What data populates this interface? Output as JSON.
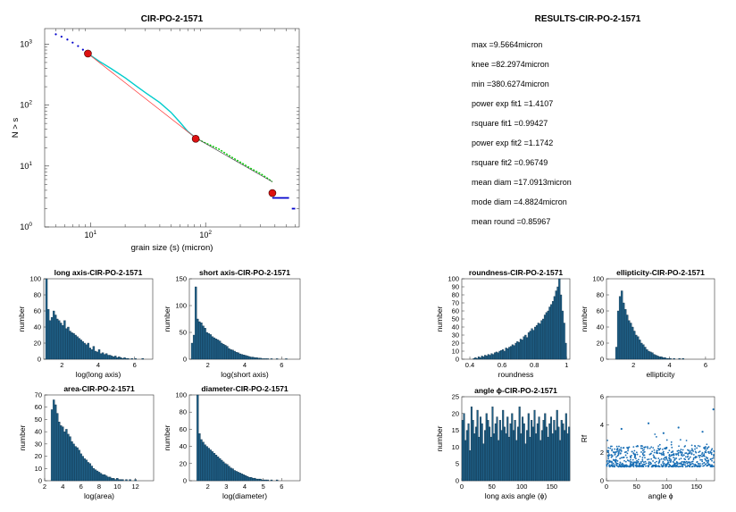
{
  "results": {
    "title": "RESULTS-CIR-PO-2-1571",
    "lines": [
      "max =9.5664micron",
      "knee =82.2974micron",
      "min =380.6274micron",
      "power exp fit1 =1.4107",
      "rsquare fit1 =0.99427",
      "power exp fit2 =1.1742",
      "rsquare fit2 =0.96749",
      "mean diam =17.0913micron",
      "mode diam =4.8824micron",
      "mean round =0.85967"
    ]
  },
  "chart_data": [
    {
      "id": "main",
      "type": "line",
      "title": "CIR-PO-2-1571",
      "xlabel": "grain size (s) (micron)",
      "ylabel": "N > s",
      "xscale": "log",
      "yscale": "log",
      "xlim": [
        4,
        650
      ],
      "ylim": [
        1,
        1800
      ],
      "xticks": [
        10,
        100
      ],
      "xticklabels": [
        "10^1",
        "10^2"
      ],
      "yticks": [
        1,
        10,
        100,
        1000
      ],
      "yticklabels": [
        "10^0",
        "10^1",
        "10^2",
        "10^3"
      ],
      "colors": {
        "data": "#0000cc",
        "fit1": "#00cccc",
        "fit2": "#00cc00",
        "fitline": "#ff3333",
        "marker": "#dd1111"
      },
      "series": [
        {
          "role": "data",
          "x": [
            5,
            5.6,
            6.3,
            7,
            7.8,
            8.6,
            9.5
          ],
          "y": [
            1450,
            1330,
            1190,
            1060,
            930,
            810,
            700
          ]
        },
        {
          "role": "fit1",
          "x": [
            9.5,
            12,
            15,
            20,
            25,
            30,
            40,
            50,
            60,
            70,
            82
          ],
          "y": [
            700,
            520,
            400,
            280,
            205,
            160,
            110,
            76,
            52,
            37,
            29
          ]
        },
        {
          "role": "fit2",
          "x": [
            82,
            95,
            110,
            130,
            150,
            180,
            210,
            250,
            300,
            350,
            380
          ],
          "y": [
            29,
            25,
            22,
            19,
            16,
            13,
            11,
            9,
            7.5,
            6.2,
            5.5
          ]
        },
        {
          "role": "fitline",
          "x": [
            9.5,
            82
          ],
          "y": [
            700,
            29
          ]
        },
        {
          "role": "fitline2",
          "x": [
            82,
            380
          ],
          "y": [
            29,
            5.5
          ]
        },
        {
          "role": "tail",
          "x": [
            380,
            530
          ],
          "y": [
            3,
            3
          ]
        },
        {
          "role": "tail2",
          "x": [
            560,
            600
          ],
          "y": [
            2,
            2
          ]
        },
        {
          "role": "knees",
          "x": [
            9.5,
            82,
            380
          ],
          "y": [
            700,
            28,
            3.6
          ]
        }
      ]
    },
    {
      "id": "h1",
      "type": "bar",
      "title": "long axis-CIR-PO-2-1571",
      "xlabel": "log(long axis)",
      "ylabel": "number",
      "xlim": [
        1,
        7
      ],
      "ylim": [
        0,
        100
      ],
      "xticks": [
        2,
        4,
        6
      ],
      "yticks": [
        0,
        20,
        40,
        60,
        80,
        100
      ],
      "bin_start": 1.1,
      "bin_width": 0.1,
      "values": [
        105,
        62,
        48,
        52,
        60,
        55,
        50,
        48,
        45,
        42,
        48,
        38,
        40,
        35,
        33,
        32,
        30,
        28,
        26,
        24,
        22,
        20,
        18,
        20,
        14,
        12,
        16,
        10,
        9,
        12,
        7,
        8,
        6,
        7,
        5,
        5,
        4,
        3,
        4,
        2,
        3,
        2,
        1,
        2,
        1,
        1,
        0,
        1,
        0,
        1,
        0,
        0,
        0,
        1,
        0,
        0,
        0
      ]
    },
    {
      "id": "h2",
      "type": "bar",
      "title": "short axis-CIR-PO-2-1571",
      "xlabel": "log(short axis)",
      "ylabel": "number",
      "xlim": [
        1,
        7
      ],
      "ylim": [
        0,
        150
      ],
      "xticks": [
        2,
        4,
        6
      ],
      "yticks": [
        0,
        50,
        100,
        150
      ],
      "bin_start": 1.1,
      "bin_width": 0.1,
      "values": [
        30,
        45,
        135,
        75,
        70,
        68,
        62,
        58,
        50,
        48,
        46,
        42,
        40,
        38,
        36,
        34,
        30,
        28,
        26,
        24,
        20,
        18,
        17,
        15,
        13,
        12,
        10,
        9,
        8,
        7,
        6,
        5,
        4,
        4,
        3,
        3,
        2,
        2,
        1,
        1,
        1,
        1,
        0,
        1,
        0,
        0,
        1,
        0,
        0,
        0,
        0,
        1
      ]
    },
    {
      "id": "h3",
      "type": "bar",
      "title": "area-CIR-PO-2-1571",
      "xlabel": "log(area)",
      "ylabel": "number",
      "xlim": [
        2,
        14
      ],
      "ylim": [
        0,
        70
      ],
      "xticks": [
        2,
        4,
        6,
        8,
        10,
        12
      ],
      "yticks": [
        0,
        10,
        20,
        30,
        40,
        50,
        60,
        70
      ],
      "bin_start": 2.7,
      "bin_width": 0.2,
      "values": [
        58,
        66,
        62,
        55,
        48,
        45,
        44,
        40,
        42,
        38,
        36,
        32,
        30,
        28,
        27,
        25,
        22,
        20,
        18,
        17,
        15,
        14,
        12,
        10,
        9,
        8,
        7,
        6,
        5,
        5,
        4,
        3,
        3,
        2,
        2,
        1,
        2,
        1,
        1,
        1,
        0,
        1,
        0,
        1,
        0,
        0,
        1
      ]
    },
    {
      "id": "h4",
      "type": "bar",
      "title": "diameter-CIR-PO-2-1571",
      "xlabel": "log(diameter)",
      "ylabel": "number",
      "xlim": [
        1,
        7
      ],
      "ylim": [
        0,
        100
      ],
      "xticks": [
        2,
        3,
        4,
        5,
        6
      ],
      "yticks": [
        0,
        20,
        40,
        60,
        80,
        100
      ],
      "bin_start": 1.4,
      "bin_width": 0.1,
      "values": [
        100,
        55,
        48,
        45,
        42,
        40,
        38,
        36,
        34,
        32,
        30,
        28,
        26,
        24,
        22,
        20,
        19,
        17,
        15,
        14,
        12,
        11,
        10,
        9,
        8,
        7,
        6,
        5,
        4,
        4,
        3,
        3,
        2,
        2,
        2,
        1,
        1,
        1,
        1,
        0,
        1,
        0,
        0,
        1
      ]
    },
    {
      "id": "h5",
      "type": "bar",
      "title": "roundness-CIR-PO-2-1571",
      "xlabel": "roundness",
      "ylabel": "number",
      "xlim": [
        0.35,
        1.02
      ],
      "ylim": [
        0,
        100
      ],
      "xticks": [
        0.4,
        0.6,
        0.8,
        1
      ],
      "xticklabels": [
        "0.4",
        "0.6",
        "0.8",
        "1"
      ],
      "yticks": [
        0,
        10,
        20,
        30,
        40,
        50,
        60,
        70,
        80,
        90,
        100
      ],
      "bin_start": 0.42,
      "bin_width": 0.01,
      "values": [
        1,
        2,
        1,
        3,
        2,
        4,
        3,
        5,
        4,
        6,
        5,
        7,
        6,
        8,
        9,
        8,
        10,
        11,
        12,
        10,
        14,
        13,
        15,
        16,
        18,
        17,
        20,
        22,
        21,
        25,
        24,
        28,
        30,
        27,
        33,
        35,
        38,
        36,
        40,
        42,
        45,
        44,
        48,
        50,
        55,
        58,
        60,
        65,
        68,
        72,
        78,
        85,
        90,
        100,
        80,
        60,
        45,
        20
      ]
    },
    {
      "id": "h6",
      "type": "bar",
      "title": "ellipticity-CIR-PO-2-1571",
      "xlabel": "ellipticity",
      "ylabel": "number",
      "xlim": [
        0.5,
        6.5
      ],
      "ylim": [
        0,
        100
      ],
      "xticks": [
        2,
        4,
        6
      ],
      "yticks": [
        0,
        20,
        40,
        60,
        80,
        100
      ],
      "bin_start": 1.0,
      "bin_width": 0.1,
      "values": [
        15,
        60,
        78,
        85,
        70,
        62,
        55,
        48,
        45,
        40,
        35,
        30,
        28,
        24,
        20,
        18,
        15,
        12,
        10,
        9,
        8,
        6,
        5,
        4,
        3,
        3,
        2,
        2,
        1,
        1,
        1,
        0,
        1,
        0,
        0,
        1,
        0,
        1
      ]
    },
    {
      "id": "h7",
      "type": "bar",
      "title": "angle ϕ-CIR-PO-2-1571",
      "xlabel": "long axis angle (ϕ)",
      "ylabel": "number",
      "xlim": [
        0,
        180
      ],
      "ylim": [
        0,
        25
      ],
      "xticks": [
        0,
        50,
        100,
        150
      ],
      "yticks": [
        0,
        5,
        10,
        15,
        20,
        25
      ],
      "bin_start": 0,
      "bin_width": 2.5,
      "values": [
        18,
        20,
        12,
        15,
        17,
        9,
        22,
        18,
        14,
        16,
        21,
        13,
        19,
        17,
        11,
        15,
        20,
        18,
        16,
        13,
        22,
        14,
        17,
        19,
        12,
        18,
        15,
        21,
        16,
        14,
        19,
        13,
        17,
        20,
        15,
        18,
        12,
        16,
        22,
        14,
        19,
        17,
        11,
        15,
        20,
        13,
        18,
        16,
        21,
        14,
        17,
        19,
        12,
        15,
        18,
        20,
        16,
        13,
        17,
        19,
        14,
        18,
        15,
        21,
        16,
        12,
        18,
        17,
        15,
        20,
        14,
        16
      ]
    },
    {
      "id": "s8",
      "type": "scatter",
      "title": "",
      "xlabel": "angle ϕ",
      "ylabel": "Rf",
      "xlim": [
        0,
        180
      ],
      "ylim": [
        0,
        6
      ],
      "xticks": [
        0,
        50,
        100,
        150
      ],
      "yticks": [
        0,
        2,
        4,
        6
      ],
      "point_count": 700,
      "y_typical": [
        1.0,
        2.5
      ],
      "outliers": [
        [
          178,
          5.1
        ],
        [
          70,
          4.1
        ],
        [
          120,
          3.8
        ],
        [
          25,
          3.7
        ],
        [
          160,
          3.5
        ],
        [
          95,
          3.4
        ]
      ]
    }
  ]
}
